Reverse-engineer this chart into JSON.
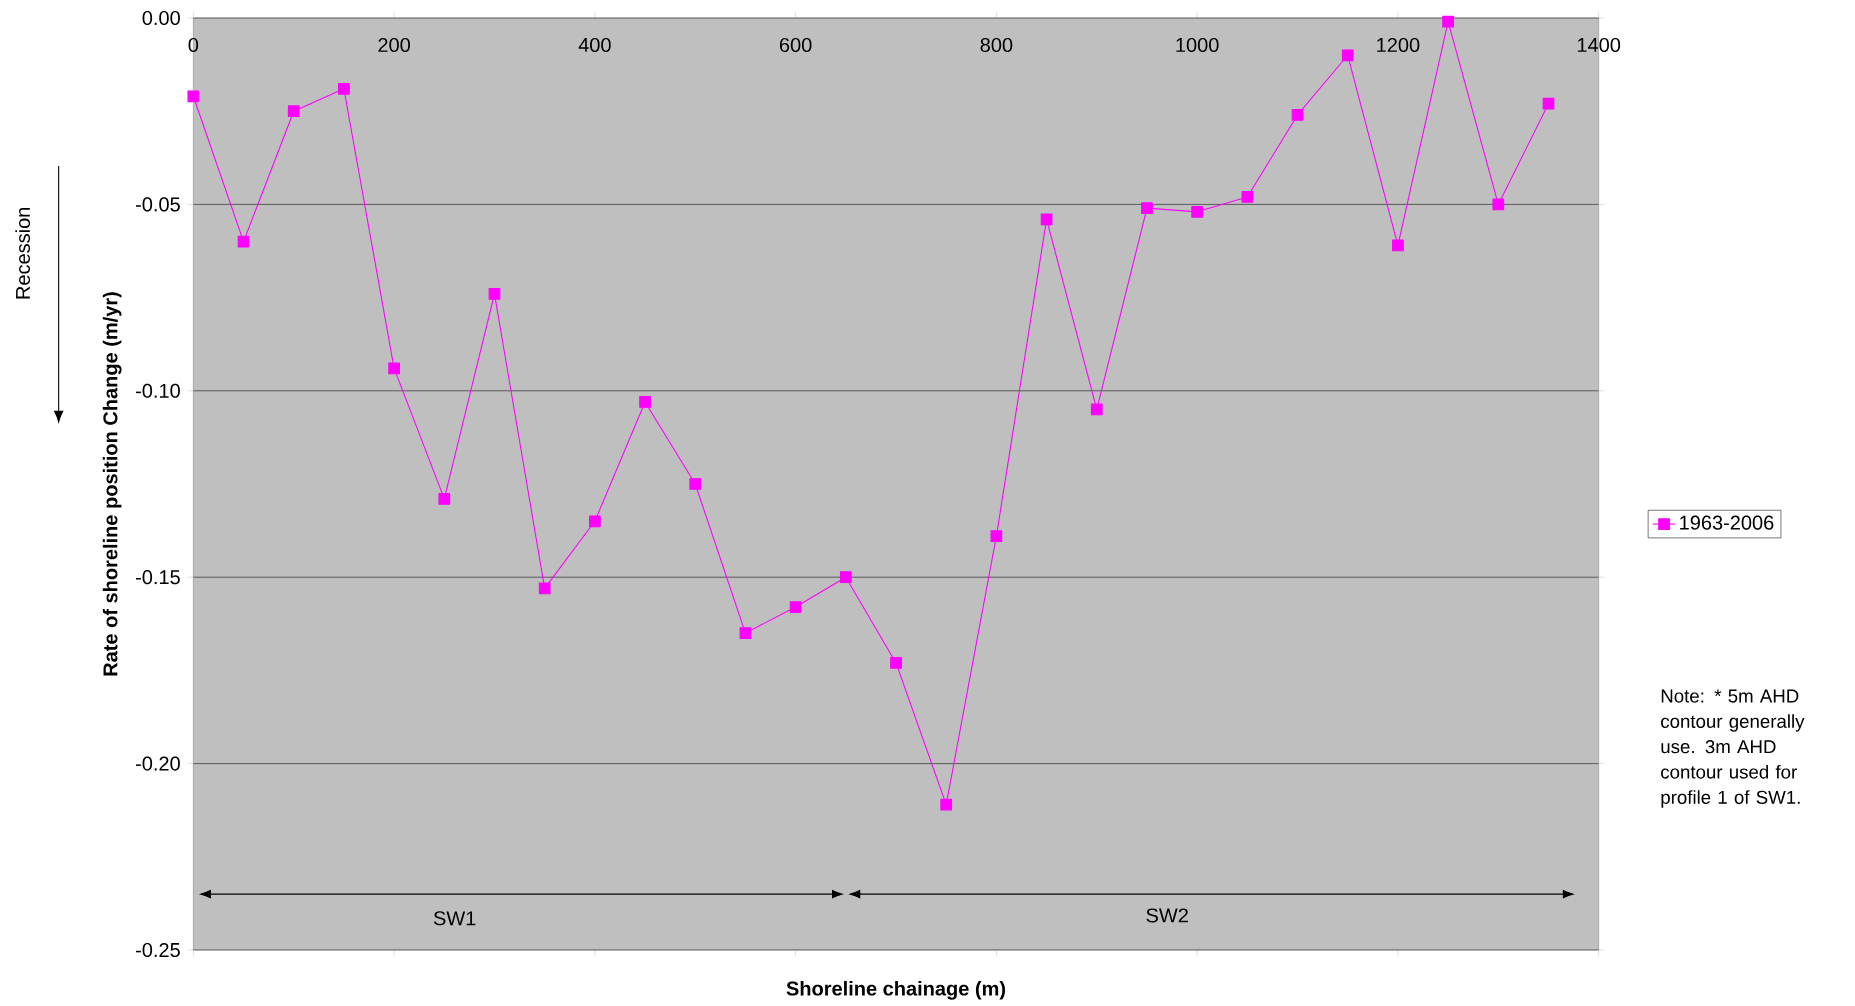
{
  "chart_data": {
    "type": "line",
    "xlabel": "Shoreline chainage (m)",
    "ylabel": "Rate of shoreline position Change (m/yr)",
    "x": [
      0,
      50,
      100,
      150,
      200,
      250,
      300,
      350,
      400,
      450,
      500,
      550,
      600,
      650,
      700,
      750,
      800,
      850,
      900,
      950,
      1000,
      1050,
      1100,
      1150,
      1200,
      1250,
      1300,
      1350
    ],
    "series": [
      {
        "name": "1963-2006",
        "color": "#ff00ff",
        "values": [
          -0.021,
          -0.06,
          -0.025,
          -0.019,
          -0.094,
          -0.129,
          -0.074,
          -0.153,
          -0.135,
          -0.103,
          -0.125,
          -0.165,
          -0.158,
          -0.15,
          -0.173,
          -0.211,
          -0.139,
          -0.054,
          -0.105,
          -0.051,
          -0.052,
          -0.048,
          -0.026,
          -0.01,
          -0.061,
          -0.001,
          -0.05,
          -0.023
        ]
      }
    ],
    "xlim": [
      0,
      1400
    ],
    "xticks": [
      0,
      200,
      400,
      600,
      800,
      1000,
      1200,
      1400
    ],
    "ylim": [
      -0.25,
      0
    ],
    "yticks": [
      {
        "value": -0.25,
        "label": "-0.25"
      },
      {
        "value": -0.2,
        "label": "-0.20"
      },
      {
        "value": -0.15,
        "label": "-0.15"
      },
      {
        "value": -0.1,
        "label": "-0.10"
      },
      {
        "value": -0.05,
        "label": "-0.05"
      },
      {
        "value": 0,
        "label": "0.00"
      }
    ],
    "annotations": [
      "Recession",
      "Note: * 5m AHD contour generally use. 3m AHD contour used for profile 1  of SW1.",
      "SW1",
      "SW2"
    ],
    "grid": "y",
    "legend": "right",
    "marker": "square",
    "line_style": "solid"
  }
}
